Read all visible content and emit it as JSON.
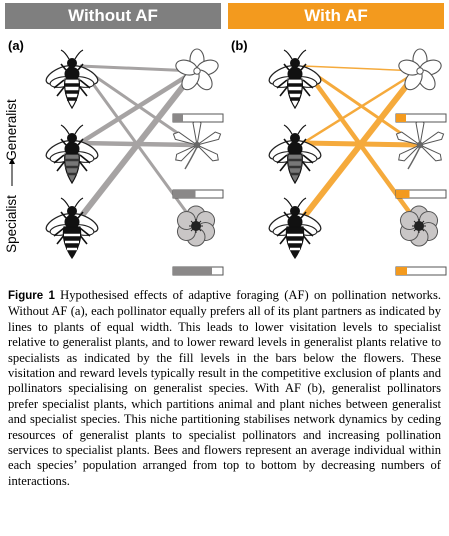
{
  "panels": {
    "a": {
      "letter": "(a)",
      "banner": "Without AF",
      "banner_color": "#7f7f7f"
    },
    "b": {
      "letter": "(b)",
      "banner": "With AF",
      "banner_color": "#f39a1e"
    }
  },
  "gradient_axis": {
    "top_label": "Generalist",
    "bottom_label": "Specialist"
  },
  "pollinators": [
    "generalist-bee",
    "intermediate-bee",
    "specialist-bee"
  ],
  "plants": [
    "generalist-flower",
    "intermediate-flower",
    "specialist-flower"
  ],
  "reward_levels": {
    "without_af": [
      0.2,
      0.45,
      0.78
    ],
    "with_af": [
      0.2,
      0.27,
      0.22
    ]
  },
  "colors": {
    "without_af_link": "#a6a3a3",
    "with_af_link": "#f5aa3c",
    "bar_fill_a": "#8a8888",
    "bar_fill_b": "#f39a1e"
  },
  "caption": {
    "label": "Figure 1",
    "text": "Hypothesised effects of adaptive foraging (AF) on pollination networks. Without AF (a), each pollinator equally prefers all of its plant partners as indicated by lines to plants of equal width. This leads to lower visitation levels to specialist relative to generalist plants, and to lower reward levels in generalist plants relative to specialists as indicated by the fill levels in the bars below the flowers. These visitation and reward levels typically result in the competitive exclusion of plants and pollinators specialising on generalist species. With AF (b), generalist pollinators prefer specialist plants, which partitions animal and plant niches between generalist and specialist species. This niche partitioning stabilises network dynamics by ceding resources of generalist plants to specialist pollinators and increasing pollination services to specialist plants. Bees and flowers represent an average individual within each species’ population arranged from top to bottom by decreasing numbers of interactions."
  }
}
